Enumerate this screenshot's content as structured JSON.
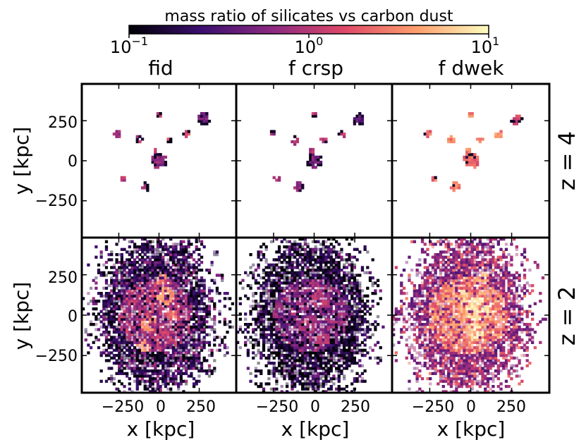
{
  "chart_data": {
    "type": "heatmap",
    "colorbar": {
      "title": "mass ratio of silicates vs carbon dust",
      "scale": "log",
      "range": [
        0.1,
        10
      ],
      "ticks": [
        {
          "value": 0.1,
          "base": "10",
          "exp": "−1"
        },
        {
          "value": 1,
          "base": "10",
          "exp": "0"
        },
        {
          "value": 10,
          "base": "10",
          "exp": "1"
        }
      ],
      "colormap": "magma",
      "stops": [
        "#000004",
        "#3b0f70",
        "#8c2981",
        "#de4968",
        "#fe9f6d",
        "#fcfdbf"
      ]
    },
    "columns": [
      "fid",
      "f crsp",
      "f dwek"
    ],
    "rows": [
      "z = 4",
      "z = 2"
    ],
    "xlabel": "x [kpc]",
    "ylabel": "y [kpc]",
    "xlim": [
      -480,
      480
    ],
    "ylim": [
      -480,
      480
    ],
    "xticks": [
      -250,
      0,
      250
    ],
    "yticks": [
      -250,
      0,
      250
    ],
    "tick_labels": [
      "−250",
      "0",
      "250"
    ],
    "panels": [
      {
        "row": 0,
        "col": 0,
        "cluster_offset": 0.0,
        "noise": 0.0,
        "clumps": [
          {
            "x": 0,
            "y": 0,
            "r": 45,
            "logv": -0.2,
            "edge": 0.95
          },
          {
            "x": 280,
            "y": 260,
            "r": 35,
            "logv": -0.3,
            "edge": 0.9
          },
          {
            "x": -260,
            "y": 170,
            "r": 20,
            "logv": -0.1,
            "edge": 0.9
          },
          {
            "x": -120,
            "y": 130,
            "r": 22,
            "logv": 0.05,
            "edge": 0.9
          },
          {
            "x": 60,
            "y": 130,
            "r": 20,
            "logv": 0.1,
            "edge": 0.9
          },
          {
            "x": 170,
            "y": 165,
            "r": 22,
            "logv": 0.15,
            "edge": 0.9
          },
          {
            "x": -90,
            "y": -160,
            "r": 26,
            "logv": -0.05,
            "edge": 0.9
          },
          {
            "x": -230,
            "y": -110,
            "r": 18,
            "logv": 0.0,
            "edge": 0.9
          },
          {
            "x": -20,
            "y": 60,
            "r": 18,
            "logv": 0.05,
            "edge": 0.9
          },
          {
            "x": 0,
            "y": 290,
            "r": 14,
            "logv": 0.1,
            "edge": 0.9
          }
        ]
      },
      {
        "row": 0,
        "col": 1,
        "cluster_offset": -0.1,
        "noise": 0.0,
        "clumps": [
          {
            "x": 0,
            "y": 0,
            "r": 45,
            "logv": -0.3,
            "edge": 0.95
          },
          {
            "x": 280,
            "y": 260,
            "r": 35,
            "logv": -0.4,
            "edge": 0.9
          },
          {
            "x": -260,
            "y": 170,
            "r": 20,
            "logv": -0.15,
            "edge": 0.9
          },
          {
            "x": -120,
            "y": 130,
            "r": 22,
            "logv": -0.05,
            "edge": 0.9
          },
          {
            "x": 60,
            "y": 130,
            "r": 20,
            "logv": 0.0,
            "edge": 0.9
          },
          {
            "x": 170,
            "y": 165,
            "r": 22,
            "logv": 0.05,
            "edge": 0.9
          },
          {
            "x": -90,
            "y": -160,
            "r": 26,
            "logv": -0.15,
            "edge": 0.9
          },
          {
            "x": -230,
            "y": -110,
            "r": 18,
            "logv": -0.1,
            "edge": 0.9
          },
          {
            "x": -20,
            "y": 60,
            "r": 18,
            "logv": -0.05,
            "edge": 0.9
          },
          {
            "x": 0,
            "y": 290,
            "r": 14,
            "logv": 0.0,
            "edge": 0.9
          }
        ]
      },
      {
        "row": 0,
        "col": 2,
        "cluster_offset": 0.4,
        "noise": 0.0,
        "clumps": [
          {
            "x": 0,
            "y": 0,
            "r": 45,
            "logv": 0.35,
            "edge": 0.4
          },
          {
            "x": 280,
            "y": 260,
            "r": 35,
            "logv": 0.1,
            "edge": 0.8
          },
          {
            "x": -260,
            "y": 170,
            "r": 20,
            "logv": 0.4,
            "edge": 0.2
          },
          {
            "x": -120,
            "y": 130,
            "r": 22,
            "logv": 0.45,
            "edge": 0.2
          },
          {
            "x": 60,
            "y": 130,
            "r": 20,
            "logv": 0.5,
            "edge": 0.2
          },
          {
            "x": 170,
            "y": 165,
            "r": 22,
            "logv": 0.5,
            "edge": 0.2
          },
          {
            "x": -90,
            "y": -160,
            "r": 26,
            "logv": 0.45,
            "edge": 0.3
          },
          {
            "x": -230,
            "y": -110,
            "r": 18,
            "logv": 0.4,
            "edge": 0.2
          },
          {
            "x": -20,
            "y": 60,
            "r": 18,
            "logv": 0.45,
            "edge": 0.2
          },
          {
            "x": 0,
            "y": 290,
            "r": 14,
            "logv": 0.5,
            "edge": 0.2
          }
        ]
      },
      {
        "row": 1,
        "col": 0,
        "cluster_offset": 0.0,
        "noise": 0.5,
        "halo": {
          "x": -20,
          "y": 0,
          "rx": 330,
          "ry": 450,
          "core": 230,
          "core_logv": -0.1,
          "ring_logv": -0.8
        },
        "hotspots": [
          {
            "x": 40,
            "y": 120,
            "r": 55,
            "logv": 0.55
          },
          {
            "x": -60,
            "y": -50,
            "r": 50,
            "logv": 0.5
          },
          {
            "x": -100,
            "y": -190,
            "r": 40,
            "logv": 0.6
          },
          {
            "x": 80,
            "y": 0,
            "r": 40,
            "logv": 0.35
          },
          {
            "x": 20,
            "y": 220,
            "r": 35,
            "logv": 0.45
          }
        ]
      },
      {
        "row": 1,
        "col": 1,
        "cluster_offset": -0.2,
        "noise": 0.45,
        "halo": {
          "x": -20,
          "y": 0,
          "rx": 330,
          "ry": 450,
          "core": 230,
          "core_logv": -0.25,
          "ring_logv": -0.9
        },
        "hotspots": [
          {
            "x": 40,
            "y": 100,
            "r": 60,
            "logv": 0.0
          },
          {
            "x": -30,
            "y": -60,
            "r": 50,
            "logv": -0.05
          },
          {
            "x": 60,
            "y": -150,
            "r": 40,
            "logv": 0.05
          }
        ]
      },
      {
        "row": 1,
        "col": 2,
        "cluster_offset": 0.4,
        "noise": 0.45,
        "halo": {
          "x": -20,
          "y": 0,
          "rx": 330,
          "ry": 450,
          "core": 240,
          "core_logv": 0.45,
          "ring_logv": -0.25
        },
        "hotspots": [
          {
            "x": 40,
            "y": 40,
            "r": 80,
            "logv": 0.85
          },
          {
            "x": 30,
            "y": -100,
            "r": 50,
            "logv": 0.9
          },
          {
            "x": -60,
            "y": 120,
            "r": 50,
            "logv": 0.75
          },
          {
            "x": 80,
            "y": 230,
            "r": 40,
            "logv": 0.7
          }
        ]
      }
    ]
  }
}
